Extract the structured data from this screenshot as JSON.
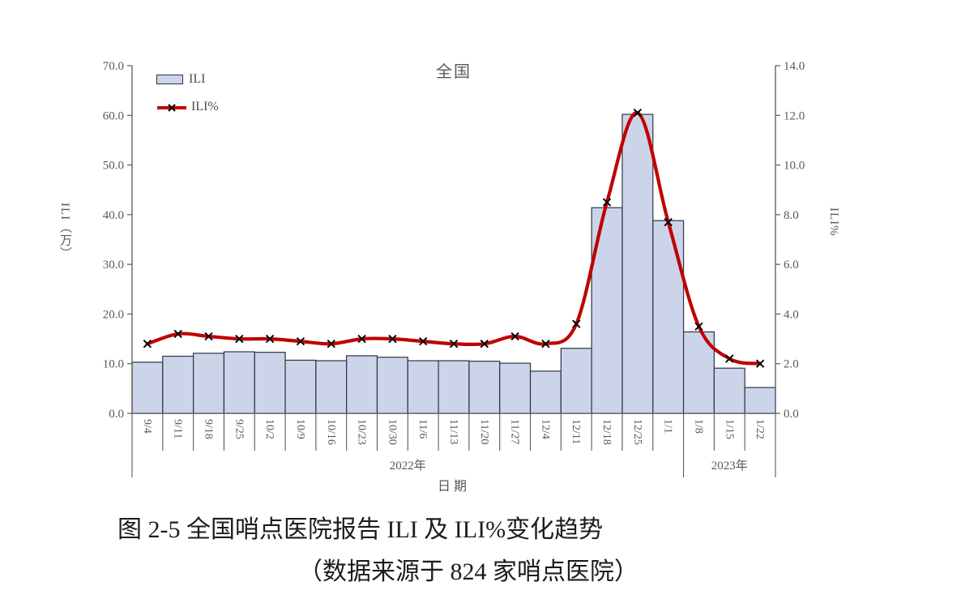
{
  "figure": {
    "title": "全国",
    "xlabel": "日期",
    "left_axis_title": "ILI（万）",
    "right_axis_title": "ILI%",
    "legend": {
      "bar_label": "ILI",
      "line_label": "ILI%"
    }
  },
  "chart_data": {
    "type": "bar+line",
    "title": "全国",
    "xlabel": "日期",
    "categories": [
      "9/4",
      "9/11",
      "9/18",
      "9/25",
      "10/2",
      "10/9",
      "10/16",
      "10/23",
      "10/30",
      "11/6",
      "11/13",
      "11/20",
      "11/27",
      "12/4",
      "12/11",
      "12/18",
      "12/25",
      "1/1",
      "1/8",
      "1/15",
      "1/22"
    ],
    "year_groups": [
      {
        "label": "2022年",
        "span": [
          0,
          17
        ]
      },
      {
        "label": "2023年",
        "span": [
          18,
          20
        ]
      }
    ],
    "series": [
      {
        "name": "ILI",
        "type": "bar",
        "axis": "left",
        "values": [
          10.3,
          11.5,
          12.1,
          12.4,
          12.3,
          10.7,
          10.6,
          11.6,
          11.3,
          10.6,
          10.6,
          10.5,
          10.1,
          8.5,
          13.1,
          41.4,
          60.2,
          38.8,
          16.4,
          9.1,
          5.2
        ]
      },
      {
        "name": "ILI%",
        "type": "line",
        "axis": "right",
        "values": [
          2.8,
          3.2,
          3.1,
          3.0,
          3.0,
          2.9,
          2.8,
          3.0,
          3.0,
          2.9,
          2.8,
          2.8,
          3.1,
          2.8,
          3.6,
          8.5,
          12.1,
          7.7,
          3.5,
          2.2,
          2.0
        ]
      }
    ],
    "left_axis": {
      "min": 0,
      "max": 70,
      "step": 10,
      "tick_labels": [
        "0.0",
        "10.0",
        "20.0",
        "30.0",
        "40.0",
        "50.0",
        "60.0",
        "70.0"
      ]
    },
    "right_axis": {
      "min": 0,
      "max": 14,
      "step": 2,
      "tick_labels": [
        "0.0",
        "2.0",
        "4.0",
        "6.0",
        "8.0",
        "10.0",
        "12.0",
        "14.0"
      ]
    },
    "grid": false,
    "legend_position": "top-left"
  },
  "caption": {
    "line1": "图 2-5  全国哨点医院报告 ILI 及 ILI%变化趋势",
    "line2": "（数据来源于 824 家哨点医院）"
  },
  "colors": {
    "bar_fill": "#ccd4e9",
    "bar_stroke": "#2d3440",
    "line": "#c00000",
    "marker": "#000000",
    "axis": "#595959",
    "text": "#595959"
  }
}
